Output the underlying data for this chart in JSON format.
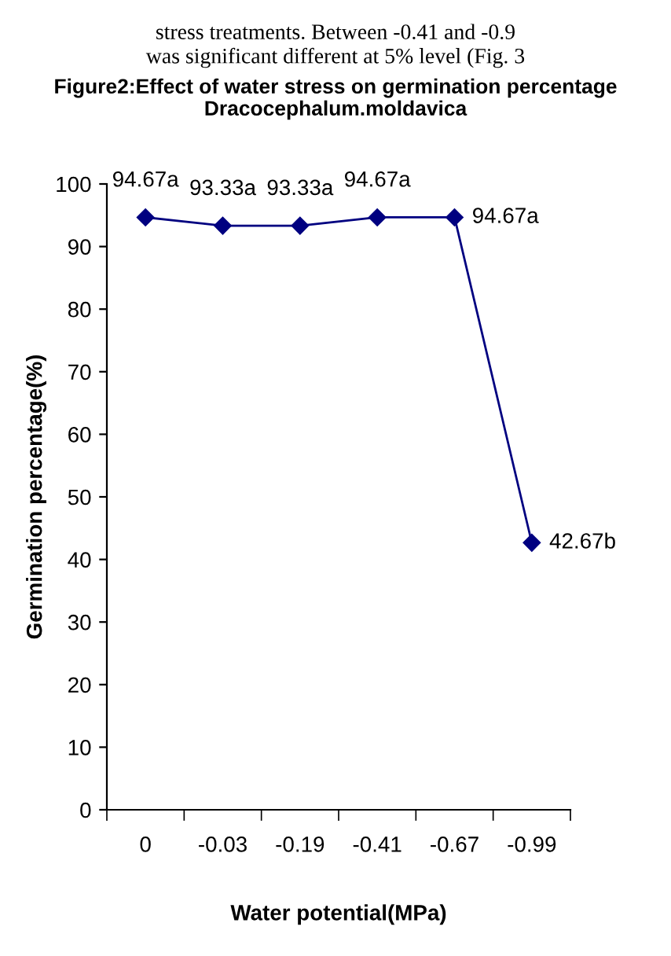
{
  "chart_data": {
    "type": "line",
    "title": "Figure2:Effect of water stress on germination percentage",
    "subtitle": "Dracocephalum.moldavica",
    "xlabel": "Water potential(MPa)",
    "ylabel": "Germination percentage(%)",
    "annotations": [
      "stress treatments. Between -0.41 and -0.9",
      "was significant different at 5% level (Fig. 3"
    ],
    "categories": [
      "0",
      "-0.03",
      "-0.19",
      "-0.41",
      "-0.67",
      "-0.99"
    ],
    "series": [
      {
        "color": "#000080",
        "values": [
          94.67,
          93.33,
          93.33,
          94.67,
          94.67,
          42.67
        ],
        "value_labels": [
          "94.67a",
          "93.33a",
          "93.33a",
          "94.67a",
          "94.67a",
          "42.67b"
        ]
      }
    ],
    "ylim": [
      0,
      100
    ],
    "yticks": [
      0,
      10,
      20,
      30,
      40,
      50,
      60,
      70,
      80,
      90,
      100
    ],
    "grid": false,
    "marker": "diamond",
    "line_style": "solid"
  }
}
